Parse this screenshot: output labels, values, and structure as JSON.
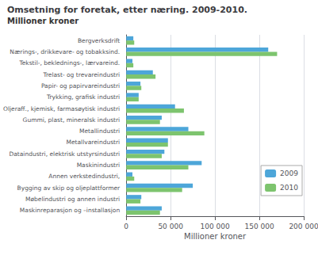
{
  "chart_data": {
    "type": "bar",
    "orientation": "horizontal",
    "title": "Omsetning for foretak, etter næring. 2009-2010.",
    "subtitle": "Millioner kroner",
    "xlabel": "Millioner kroner",
    "categories": [
      "Bergverksdrift",
      "Nærings-, drikkevare- og tobakksind.",
      "Tekstil-, beklednings-, lærvareind.",
      "Trelast- og trevareindustri",
      "Papir- og papirvareindustri",
      "Trykking, grafisk industri",
      "Oljeraff., kjemisk, farmasøytisk industri",
      "Gummi, plast, mineralsk industri",
      "Metallindustri",
      "Metallvareindustri",
      "Dataindustri, elektrisk utstyrsindustri",
      "Maskinindustri",
      "Annen verkstedindustri,",
      "Bygging av skip og oljeplattformer",
      "Møbelindustri og annen industri",
      "Maskinreparasjon og –installasjon"
    ],
    "series": [
      {
        "name": "2009",
        "color": "#4da6d9",
        "values": [
          8000,
          160000,
          7000,
          30000,
          16000,
          14000,
          55000,
          40000,
          70000,
          47000,
          43000,
          85000,
          7000,
          75000,
          17000,
          40000
        ]
      },
      {
        "name": "2010",
        "color": "#7dc46e",
        "values": [
          9000,
          170000,
          8000,
          33000,
          17000,
          14000,
          65000,
          38000,
          88000,
          47000,
          40000,
          70000,
          9000,
          63000,
          16000,
          38000
        ]
      }
    ],
    "xlim": [
      0,
      200000
    ],
    "xticks": [
      0,
      {
        "value": 50000,
        "label": "50 000"
      },
      {
        "value": 100000,
        "label": "100 000"
      },
      {
        "value": 150000,
        "label": "150 000"
      },
      {
        "value": 200000,
        "label": "200 000"
      }
    ],
    "grid": true,
    "legend": "right"
  }
}
